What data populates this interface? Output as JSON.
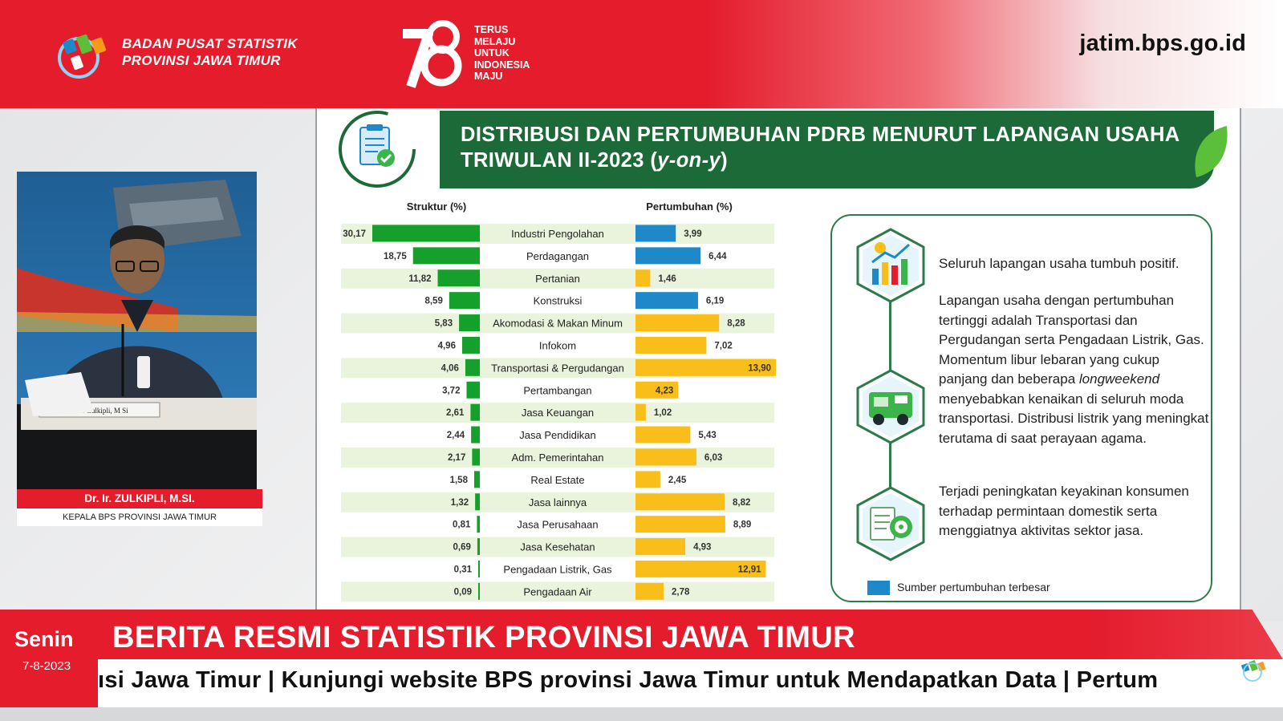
{
  "header": {
    "org_line1": "BADAN PUSAT STATISTIK",
    "org_line2": "PROVINSI JAWA TIMUR",
    "anniversary_number": "78",
    "anniversary_lines": [
      "TERUS",
      "MELAJU",
      "UNTUK",
      "INDONESIA",
      "MAJU"
    ],
    "website": "jatim.bps.go.id"
  },
  "speaker": {
    "nameplate": "Dr Ir Zulkipli, M Si",
    "name": "Dr. Ir. ZULKIPLI, M.SI.",
    "title": "KEPALA BPS PROVINSI JAWA TIMUR"
  },
  "slide": {
    "title_line1": "DISTRIBUSI DAN PERTUMBUHAN PDRB MENURUT LAPANGAN USAHA",
    "title_line2_prefix": "TRIWULAN II-2023 (",
    "title_line2_italic": "y-on-y",
    "title_line2_suffix": ")",
    "info": {
      "point1": "Seluruh lapangan usaha tumbuh positif.",
      "point2_before": "Lapangan usaha dengan pertumbuhan tertinggi adalah Transportasi dan Pergudangan serta Pengadaan Listrik, Gas. Momentum libur lebaran yang cukup panjang dan beberapa ",
      "point2_italic": "longweekend",
      "point2_after": "  menyebabkan kenaikan di seluruh moda transportasi. Distribusi listrik yang meningkat terutama di saat perayaan agama.",
      "point3": "Terjadi peningkatan keyakinan konsumen terhadap permintaan domestik serta menggiatnya aktivitas sektor jasa.",
      "legend": "Sumber pertumbuhan terbesar"
    },
    "colors": {
      "structure_bar": "#14a02b",
      "growth_bar": "#f9be1a",
      "growth_highlight": "#1e88c8",
      "title_green": "#1d6a39"
    }
  },
  "chart_data": {
    "type": "bar",
    "title": "DISTRIBUSI DAN PERTUMBUHAN PDRB MENURUT LAPANGAN USAHA TRIWULAN II-2023 (y-on-y)",
    "categories": [
      "Industri Pengolahan",
      "Perdagangan",
      "Pertanian",
      "Konstruksi",
      "Akomodasi & Makan Minum",
      "Infokom",
      "Transportasi & Pergudangan",
      "Pertambangan",
      "Jasa Keuangan",
      "Jasa Pendidikan",
      "Adm. Pemerintahan",
      "Real Estate",
      "Jasa lainnya",
      "Jasa Perusahaan",
      "Jasa Kesehatan",
      "Pengadaan Listrik, Gas",
      "Pengadaan Air"
    ],
    "series": [
      {
        "name": "Struktur (%)",
        "values": [
          30.17,
          18.75,
          11.82,
          8.59,
          5.83,
          4.96,
          4.06,
          3.72,
          2.61,
          2.44,
          2.17,
          1.58,
          1.32,
          0.81,
          0.69,
          0.31,
          0.09
        ]
      },
      {
        "name": "Pertumbuhan (%)",
        "values": [
          3.99,
          6.44,
          1.46,
          6.19,
          8.28,
          7.02,
          13.9,
          4.23,
          1.02,
          5.43,
          6.03,
          2.45,
          8.82,
          8.89,
          4.93,
          12.91,
          2.78
        ]
      }
    ],
    "structure_labels": [
      "30,17",
      "18,75",
      "11,82",
      "8,59",
      "5,83",
      "4,96",
      "4,06",
      "3,72",
      "2,61",
      "2,44",
      "2,17",
      "1,58",
      "1,32",
      "0,81",
      "0,69",
      "0,31",
      "0,09"
    ],
    "growth_labels": [
      "3,99",
      "6,44",
      "1,46",
      "6,19",
      "8,28",
      "7,02",
      "13,90",
      "4,23",
      "1,02",
      "5,43",
      "6,03",
      "2,45",
      "8,82",
      "8,89",
      "4,93",
      "12,91",
      "2,78"
    ],
    "growth_highlight": [
      true,
      true,
      false,
      true,
      false,
      false,
      false,
      false,
      false,
      false,
      false,
      false,
      false,
      false,
      false,
      false,
      false
    ],
    "growth_label_inside": [
      false,
      false,
      false,
      false,
      false,
      false,
      true,
      true,
      false,
      false,
      false,
      false,
      false,
      false,
      false,
      true,
      false
    ],
    "legend": [
      "Sumber pertumbuhan terbesar"
    ]
  },
  "bottom": {
    "day": "Senin",
    "date": "7-8-2023",
    "headline": "BERITA RESMI STATISTIK PROVINSI JAWA TIMUR",
    "ticker": "ısi Jawa Timur    |    Kunjungi website BPS provinsi Jawa Timur untuk Mendapatkan Data    |    Pertum"
  }
}
